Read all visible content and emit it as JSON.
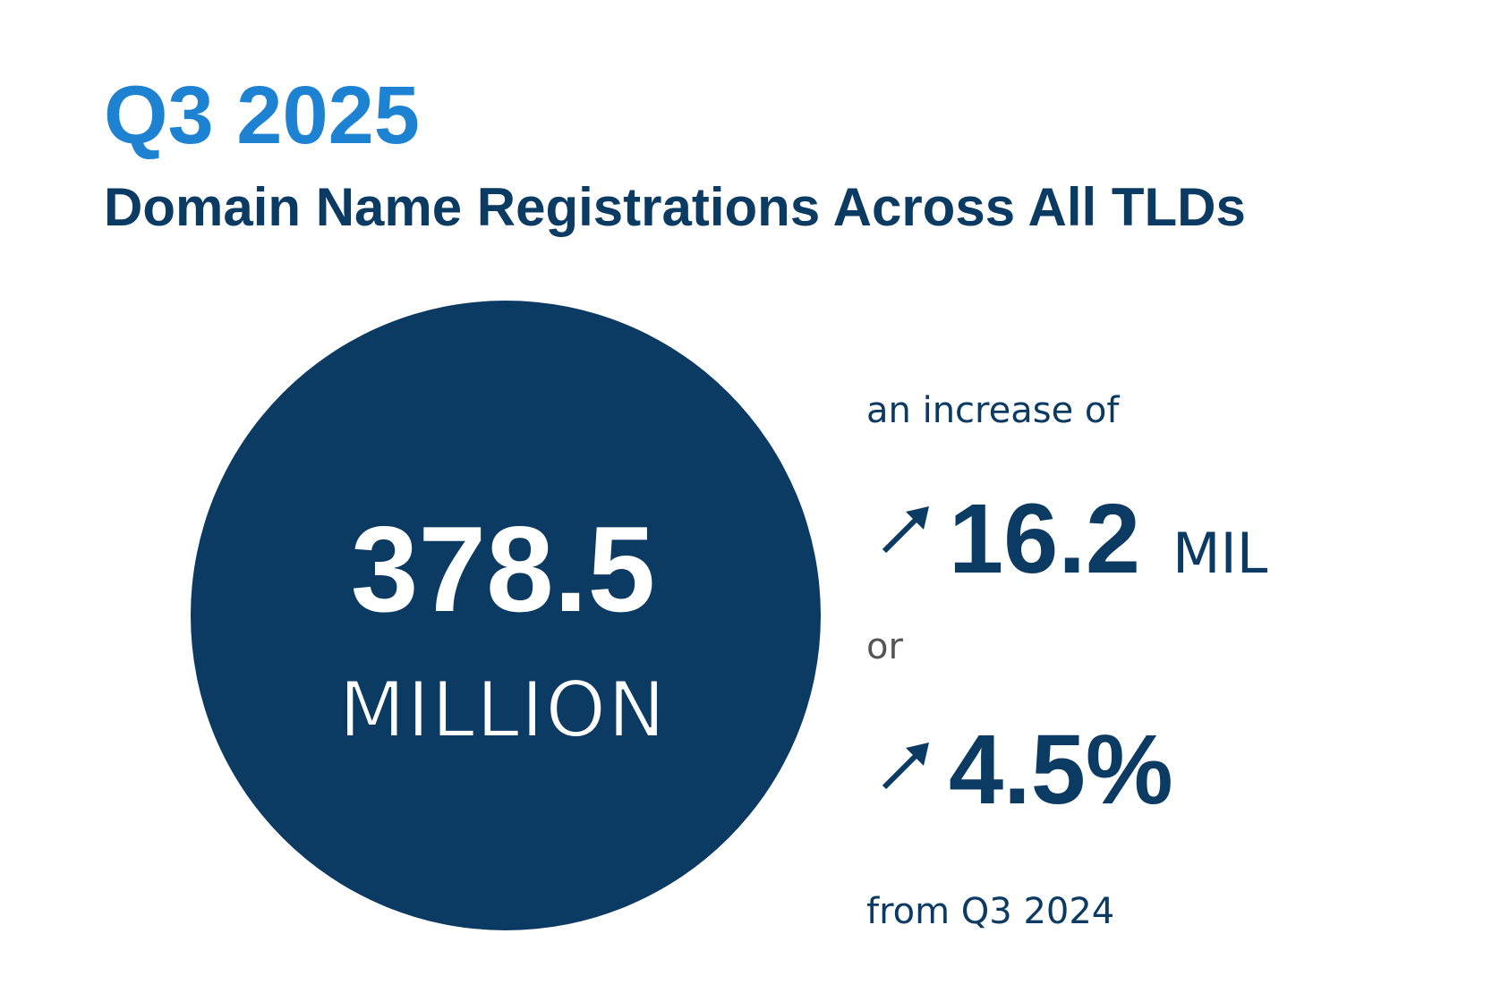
{
  "header": {
    "period": "Q3 2025",
    "title": "Domain Name Registrations Across All TLDs"
  },
  "total": {
    "value": "378.5",
    "unit": "MILLION"
  },
  "change": {
    "intro": "an increase of",
    "absolute": {
      "value": "16.2",
      "unit": "MIL"
    },
    "connector": "or",
    "percent": "4.5%",
    "comparison": "from Q3 2024"
  }
}
